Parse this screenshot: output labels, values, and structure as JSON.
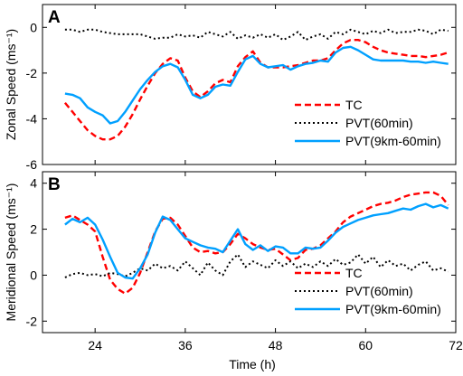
{
  "chart_data": [
    {
      "type": "line",
      "panel_label": "A",
      "ylabel": "Zonal Speed (ms⁻¹)",
      "xlabel": "",
      "xlim": [
        17,
        72
      ],
      "ylim": [
        -6,
        1
      ],
      "xticks": [
        24,
        36,
        48,
        60,
        72
      ],
      "yticks": [
        -6,
        -4,
        -2,
        0
      ],
      "ytick_labels": [
        "-6",
        "-4",
        "-2",
        "0"
      ],
      "legend_position": "lower-right",
      "series": [
        {
          "name": "TC",
          "color": "#ff0000",
          "style": "dashed",
          "x": [
            20,
            21,
            22,
            23,
            24,
            25,
            26,
            27,
            28,
            29,
            30,
            31,
            32,
            33,
            34,
            35,
            36,
            37,
            38,
            39,
            40,
            41,
            42,
            43,
            44,
            45,
            46,
            47,
            48,
            49,
            50,
            51,
            52,
            53,
            54,
            55,
            56,
            57,
            58,
            59,
            60,
            61,
            62,
            63,
            64,
            65,
            66,
            67,
            68,
            69,
            70,
            71
          ],
          "y": [
            -3.3,
            -3.7,
            -4.1,
            -4.5,
            -4.75,
            -4.9,
            -4.9,
            -4.75,
            -4.35,
            -3.8,
            -3.15,
            -2.55,
            -2.0,
            -1.6,
            -1.35,
            -1.45,
            -2.2,
            -2.8,
            -3.05,
            -2.8,
            -2.45,
            -2.3,
            -2.4,
            -1.7,
            -1.3,
            -1.05,
            -1.55,
            -1.75,
            -1.75,
            -1.75,
            -1.7,
            -1.65,
            -1.55,
            -1.45,
            -1.45,
            -1.35,
            -1.0,
            -0.7,
            -0.55,
            -0.55,
            -0.65,
            -0.85,
            -1.0,
            -1.1,
            -1.15,
            -1.2,
            -1.25,
            -1.25,
            -1.3,
            -1.25,
            -1.2,
            -1.1
          ]
        },
        {
          "name": "PVT(60min)",
          "color": "#000000",
          "style": "dotted",
          "x": [
            20,
            21,
            22,
            23,
            24,
            25,
            26,
            27,
            28,
            29,
            30,
            31,
            32,
            33,
            34,
            35,
            36,
            37,
            38,
            39,
            40,
            41,
            42,
            43,
            44,
            45,
            46,
            47,
            48,
            49,
            50,
            51,
            52,
            53,
            54,
            55,
            56,
            57,
            58,
            59,
            60,
            61,
            62,
            63,
            64,
            65,
            66,
            67,
            68,
            69,
            70,
            71
          ],
          "y": [
            -0.1,
            -0.1,
            -0.2,
            -0.1,
            -0.1,
            -0.2,
            -0.25,
            -0.3,
            -0.3,
            -0.3,
            -0.3,
            -0.4,
            -0.5,
            -0.45,
            -0.45,
            -0.3,
            -0.4,
            -0.35,
            -0.45,
            -0.2,
            -0.3,
            -0.4,
            -0.2,
            -0.5,
            -0.35,
            -0.45,
            -0.3,
            -0.45,
            -0.3,
            -0.55,
            -0.4,
            -0.2,
            -0.55,
            -0.4,
            -0.3,
            -0.5,
            -0.2,
            -0.3,
            -0.1,
            -0.2,
            -0.3,
            -0.15,
            -0.25,
            -0.1,
            -0.25,
            -0.2,
            -0.2,
            -0.1,
            -0.15,
            -0.3,
            -0.1,
            -0.15
          ]
        },
        {
          "name": "PVT(9km-60min)",
          "color": "#00a0ff",
          "style": "solid",
          "x": [
            20,
            21,
            22,
            23,
            24,
            25,
            26,
            27,
            28,
            29,
            30,
            31,
            32,
            33,
            34,
            35,
            36,
            37,
            38,
            39,
            40,
            41,
            42,
            43,
            44,
            45,
            46,
            47,
            48,
            49,
            50,
            51,
            52,
            53,
            54,
            55,
            56,
            57,
            58,
            59,
            60,
            61,
            62,
            63,
            64,
            65,
            66,
            67,
            68,
            69,
            70,
            71
          ],
          "y": [
            -2.9,
            -2.95,
            -3.1,
            -3.5,
            -3.7,
            -3.85,
            -4.2,
            -4.1,
            -3.7,
            -3.2,
            -2.7,
            -2.3,
            -1.95,
            -1.7,
            -1.6,
            -1.75,
            -2.3,
            -2.95,
            -3.1,
            -2.95,
            -2.6,
            -2.5,
            -2.55,
            -1.95,
            -1.4,
            -1.25,
            -1.6,
            -1.75,
            -1.7,
            -1.65,
            -1.85,
            -1.7,
            -1.6,
            -1.55,
            -1.45,
            -1.5,
            -1.1,
            -0.9,
            -0.85,
            -1.0,
            -1.2,
            -1.4,
            -1.45,
            -1.45,
            -1.45,
            -1.45,
            -1.5,
            -1.5,
            -1.55,
            -1.5,
            -1.55,
            -1.6
          ]
        }
      ]
    },
    {
      "type": "line",
      "panel_label": "B",
      "ylabel": "Meridional Speed (ms⁻¹)",
      "xlabel": "Time (h)",
      "xlim": [
        17,
        72
      ],
      "ylim": [
        -2.5,
        4.5
      ],
      "xticks": [
        24,
        36,
        48,
        60,
        72
      ],
      "yticks": [
        -2,
        0,
        2,
        4
      ],
      "ytick_labels": [
        "-2",
        "0",
        "2",
        "4"
      ],
      "legend_position": "lower-right",
      "series": [
        {
          "name": "TC",
          "color": "#ff0000",
          "style": "dashed",
          "x": [
            20,
            21,
            22,
            23,
            24,
            25,
            26,
            27,
            28,
            29,
            30,
            31,
            32,
            33,
            34,
            35,
            36,
            37,
            38,
            39,
            40,
            41,
            42,
            43,
            44,
            45,
            46,
            47,
            48,
            49,
            50,
            51,
            52,
            53,
            54,
            55,
            56,
            57,
            58,
            59,
            60,
            61,
            62,
            63,
            64,
            65,
            66,
            67,
            68,
            69,
            70,
            71
          ],
          "y": [
            2.5,
            2.6,
            2.4,
            2.2,
            1.9,
            0.8,
            -0.2,
            -0.6,
            -0.8,
            -0.55,
            0.1,
            1.0,
            1.9,
            2.45,
            2.5,
            2.2,
            1.7,
            1.2,
            1.0,
            1.05,
            0.95,
            1.0,
            1.35,
            1.8,
            1.6,
            1.35,
            1.2,
            1.1,
            1.15,
            0.9,
            0.65,
            0.75,
            1.1,
            1.15,
            1.3,
            1.6,
            1.9,
            2.3,
            2.55,
            2.7,
            2.85,
            3.0,
            3.1,
            3.15,
            3.25,
            3.4,
            3.5,
            3.55,
            3.6,
            3.6,
            3.45,
            3.05
          ]
        },
        {
          "name": "PVT(60min)",
          "color": "#000000",
          "style": "dotted",
          "x": [
            20,
            21,
            22,
            23,
            24,
            25,
            26,
            27,
            28,
            29,
            30,
            31,
            32,
            33,
            34,
            35,
            36,
            37,
            38,
            39,
            40,
            41,
            42,
            43,
            44,
            45,
            46,
            47,
            48,
            49,
            50,
            51,
            52,
            53,
            54,
            55,
            56,
            57,
            58,
            59,
            60,
            61,
            62,
            63,
            64,
            65,
            66,
            67,
            68,
            69,
            70,
            71
          ],
          "y": [
            -0.1,
            0.05,
            0.1,
            0.0,
            0.05,
            -0.05,
            0.1,
            0.05,
            -0.05,
            0.1,
            0.3,
            0.2,
            0.5,
            0.3,
            0.4,
            0.2,
            0.6,
            0.3,
            0.0,
            0.55,
            0.2,
            0.0,
            0.6,
            0.9,
            0.35,
            0.6,
            0.45,
            0.3,
            0.65,
            0.4,
            0.6,
            0.3,
            0.5,
            0.35,
            0.6,
            0.4,
            0.7,
            0.45,
            0.55,
            0.9,
            0.5,
            0.8,
            0.35,
            0.65,
            0.4,
            0.5,
            0.2,
            0.45,
            0.6,
            0.2,
            0.3,
            0.15
          ]
        },
        {
          "name": "PVT(9km-60min)",
          "color": "#00a0ff",
          "style": "solid",
          "x": [
            20,
            21,
            22,
            23,
            24,
            25,
            26,
            27,
            28,
            29,
            30,
            31,
            32,
            33,
            34,
            35,
            36,
            37,
            38,
            39,
            40,
            41,
            42,
            43,
            44,
            45,
            46,
            47,
            48,
            49,
            50,
            51,
            52,
            53,
            54,
            55,
            56,
            57,
            58,
            59,
            60,
            61,
            62,
            63,
            64,
            65,
            66,
            67,
            68,
            69,
            70,
            71
          ],
          "y": [
            2.2,
            2.45,
            2.3,
            2.5,
            2.2,
            1.55,
            0.8,
            0.1,
            -0.1,
            -0.15,
            0.3,
            0.9,
            1.85,
            2.55,
            2.4,
            2.0,
            1.6,
            1.45,
            1.3,
            1.2,
            1.15,
            1.0,
            1.5,
            2.0,
            1.35,
            1.1,
            1.3,
            1.05,
            1.25,
            1.2,
            0.95,
            0.95,
            1.2,
            1.15,
            1.2,
            1.5,
            1.85,
            2.1,
            2.25,
            2.4,
            2.5,
            2.6,
            2.65,
            2.7,
            2.8,
            2.9,
            2.85,
            3.0,
            3.1,
            2.95,
            3.05,
            2.9
          ]
        }
      ]
    }
  ]
}
